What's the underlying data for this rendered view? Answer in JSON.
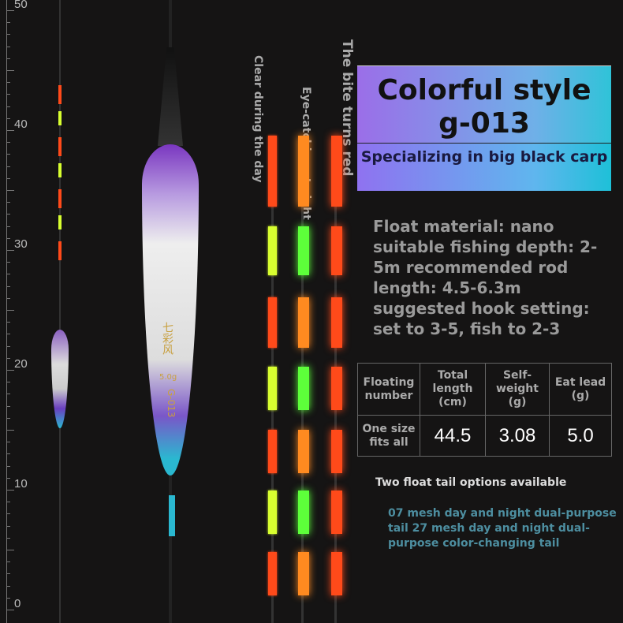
{
  "ruler": {
    "labels": [
      "50",
      "40",
      "30",
      "20",
      "10",
      "0"
    ]
  },
  "float": {
    "brand": "七彩风",
    "weight": "5.0g",
    "model": "G-013"
  },
  "tail_labels": [
    "Clear during the day",
    "Eye-catching at night",
    "The bite turns red"
  ],
  "header": {
    "title": "Colorful style g-013",
    "subtitle": "Specializing in big black carp"
  },
  "specs": "Float material: nano suitable fishing depth: 2-5m recommended rod length: 4.5-6.3m suggested hook setting: set to 3-5, fish to 2-3",
  "table": {
    "headers": [
      "Floating number",
      "Total length (cm)",
      "Self-weight (g)",
      "Eat lead (g)"
    ],
    "row": [
      "One size fits all",
      "44.5",
      "3.08",
      "5.0"
    ]
  },
  "notes": {
    "title": "Two float tail options available",
    "body": "07 mesh day and night dual-purpose tail 27 mesh day and night dual-purpose color-changing tail"
  },
  "colors": {
    "red": "#ff4a1a",
    "orange": "#ff8a20",
    "green": "#5dff3a",
    "yellow": "#d8ff30",
    "purple": "#8a3fc8",
    "cyan": "#2ab8d0"
  }
}
